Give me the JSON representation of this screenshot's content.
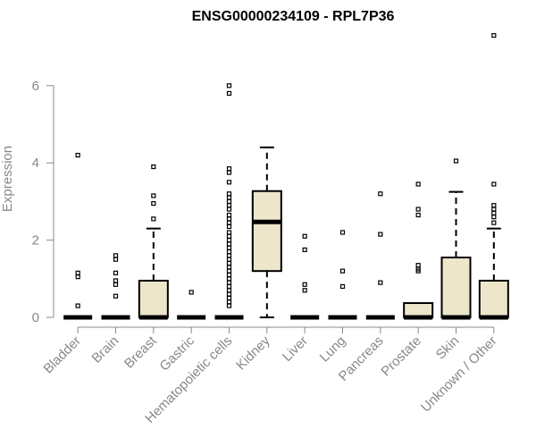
{
  "chart_data": {
    "type": "box",
    "title": "ENSG00000234109 - RPL7P36",
    "xlabel": "",
    "ylabel": "Expression",
    "ylim": [
      -0.2,
      7.4
    ],
    "yticks": [
      0,
      2,
      4,
      6
    ],
    "grid": false,
    "box_color": "#ede6cb",
    "categories": [
      "Bladder",
      "Brain",
      "Breast",
      "Gastric",
      "Hematopoietic cells",
      "Kidney",
      "Liver",
      "Lung",
      "Pancreas",
      "Prostate",
      "Skin",
      "Unknown / Other"
    ],
    "boxes": [
      {
        "name": "Bladder",
        "q1": 0,
        "median": 0,
        "q3": 0,
        "whisker_low": 0,
        "whisker_high": 0,
        "outliers": [
          4.2,
          1.15,
          1.05,
          0.3
        ]
      },
      {
        "name": "Brain",
        "q1": 0,
        "median": 0,
        "q3": 0,
        "whisker_low": 0,
        "whisker_high": 0,
        "outliers": [
          1.6,
          1.5,
          1.15,
          0.95,
          0.85,
          0.55
        ]
      },
      {
        "name": "Breast",
        "q1": 0,
        "median": 0,
        "q3": 0.95,
        "whisker_low": 0,
        "whisker_high": 2.3,
        "outliers": [
          3.9,
          3.15,
          2.95,
          2.55
        ]
      },
      {
        "name": "Gastric",
        "q1": 0,
        "median": 0,
        "q3": 0,
        "whisker_low": 0,
        "whisker_high": 0,
        "outliers": [
          0.65
        ]
      },
      {
        "name": "Hematopoietic cells",
        "q1": 0,
        "median": 0,
        "q3": 0,
        "whisker_low": 0,
        "whisker_high": 0,
        "outliers": [
          6.0,
          5.8,
          3.85,
          3.75,
          3.5,
          3.2,
          3.1,
          3.0,
          2.9,
          2.8,
          2.65,
          2.55,
          2.45,
          2.35,
          2.2,
          2.1,
          2.0,
          1.9,
          1.8,
          1.7,
          1.6,
          1.5,
          1.4,
          1.3,
          1.2,
          1.1,
          1.0,
          0.9,
          0.8,
          0.7,
          0.6,
          0.5,
          0.4,
          0.3
        ]
      },
      {
        "name": "Kidney",
        "q1": 1.2,
        "median": 2.47,
        "q3": 3.27,
        "whisker_low": 0,
        "whisker_high": 4.4,
        "outliers": []
      },
      {
        "name": "Liver",
        "q1": 0,
        "median": 0,
        "q3": 0,
        "whisker_low": 0,
        "whisker_high": 0,
        "outliers": [
          2.1,
          1.75,
          0.85,
          0.7
        ]
      },
      {
        "name": "Lung",
        "q1": 0,
        "median": 0,
        "q3": 0,
        "whisker_low": 0,
        "whisker_high": 0,
        "outliers": [
          2.2,
          1.2,
          0.8
        ]
      },
      {
        "name": "Pancreas",
        "q1": 0,
        "median": 0,
        "q3": 0,
        "whisker_low": 0,
        "whisker_high": 0,
        "outliers": [
          3.2,
          2.15,
          0.9
        ]
      },
      {
        "name": "Prostate",
        "q1": 0,
        "median": 0,
        "q3": 0.37,
        "whisker_low": 0,
        "whisker_high": 0.37,
        "outliers": [
          3.45,
          2.8,
          2.65,
          1.35,
          1.25,
          1.2
        ]
      },
      {
        "name": "Skin",
        "q1": 0,
        "median": 0,
        "q3": 1.55,
        "whisker_low": 0,
        "whisker_high": 3.25,
        "outliers": [
          4.05
        ]
      },
      {
        "name": "Unknown / Other",
        "q1": 0,
        "median": 0,
        "q3": 0.95,
        "whisker_low": 0,
        "whisker_high": 2.3,
        "outliers": [
          7.3,
          3.45,
          2.9,
          2.8,
          2.7,
          2.6,
          2.45
        ]
      }
    ]
  }
}
